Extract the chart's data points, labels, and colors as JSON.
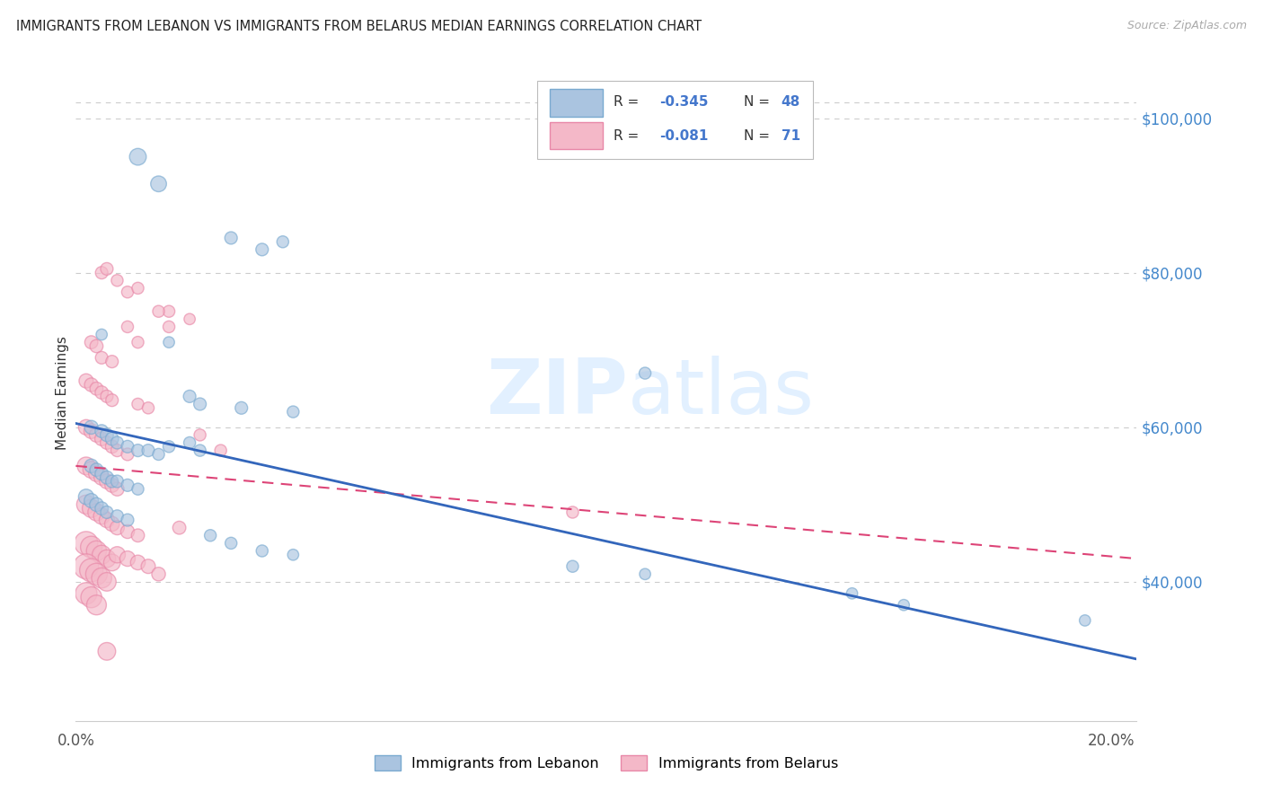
{
  "title": "IMMIGRANTS FROM LEBANON VS IMMIGRANTS FROM BELARUS MEDIAN EARNINGS CORRELATION CHART",
  "source_text": "Source: ZipAtlas.com",
  "ylabel": "Median Earnings",
  "xlim": [
    0.0,
    0.205
  ],
  "ylim": [
    22000,
    107000
  ],
  "yticks": [
    40000,
    60000,
    80000,
    100000
  ],
  "ytick_labels": [
    "$40,000",
    "$60,000",
    "$80,000",
    "$100,000"
  ],
  "xticks": [
    0.0,
    0.05,
    0.1,
    0.15,
    0.2
  ],
  "xtick_labels": [
    "0.0%",
    "",
    "",
    "",
    "20.0%"
  ],
  "watermark": "ZIPatlas",
  "lebanon_color": "#aac4e0",
  "lebanon_edge": "#7aaad0",
  "belarus_color": "#f4b8c8",
  "belarus_edge": "#e888a8",
  "line_lebanon_color": "#3366bb",
  "line_belarus_color": "#dd4477",
  "lebanon_line": [
    0.0,
    60500,
    0.205,
    30000
  ],
  "belarus_line": [
    0.0,
    55000,
    0.205,
    43000
  ],
  "background_color": "#ffffff",
  "grid_color": "#cccccc",
  "ytick_color": "#4488cc",
  "title_fontsize": 11,
  "source_fontsize": 9,
  "legend_R1": "R = -0.345",
  "legend_N1": "N = 48",
  "legend_R2": "R = -0.081",
  "legend_N2": "N = 71",
  "lebanon_points": [
    [
      0.012,
      95000,
      180
    ],
    [
      0.016,
      91500,
      160
    ],
    [
      0.03,
      84500,
      100
    ],
    [
      0.036,
      83000,
      100
    ],
    [
      0.04,
      84000,
      90
    ],
    [
      0.005,
      72000,
      80
    ],
    [
      0.018,
      71000,
      80
    ],
    [
      0.11,
      67000,
      90
    ],
    [
      0.022,
      64000,
      100
    ],
    [
      0.024,
      63000,
      100
    ],
    [
      0.032,
      62500,
      100
    ],
    [
      0.042,
      62000,
      90
    ],
    [
      0.003,
      60000,
      120
    ],
    [
      0.005,
      59500,
      110
    ],
    [
      0.006,
      59000,
      110
    ],
    [
      0.007,
      58500,
      110
    ],
    [
      0.008,
      58000,
      100
    ],
    [
      0.01,
      57500,
      100
    ],
    [
      0.012,
      57000,
      100
    ],
    [
      0.014,
      57000,
      100
    ],
    [
      0.016,
      56500,
      90
    ],
    [
      0.018,
      57500,
      90
    ],
    [
      0.022,
      58000,
      90
    ],
    [
      0.024,
      57000,
      90
    ],
    [
      0.003,
      55000,
      120
    ],
    [
      0.004,
      54500,
      110
    ],
    [
      0.005,
      54000,
      110
    ],
    [
      0.006,
      53500,
      110
    ],
    [
      0.007,
      53000,
      100
    ],
    [
      0.008,
      53000,
      100
    ],
    [
      0.01,
      52500,
      100
    ],
    [
      0.012,
      52000,
      90
    ],
    [
      0.002,
      51000,
      150
    ],
    [
      0.003,
      50500,
      130
    ],
    [
      0.004,
      50000,
      120
    ],
    [
      0.005,
      49500,
      110
    ],
    [
      0.006,
      49000,
      100
    ],
    [
      0.008,
      48500,
      100
    ],
    [
      0.01,
      48000,
      100
    ],
    [
      0.026,
      46000,
      90
    ],
    [
      0.03,
      45000,
      90
    ],
    [
      0.036,
      44000,
      90
    ],
    [
      0.042,
      43500,
      80
    ],
    [
      0.096,
      42000,
      90
    ],
    [
      0.11,
      41000,
      80
    ],
    [
      0.15,
      38500,
      80
    ],
    [
      0.16,
      37000,
      80
    ],
    [
      0.195,
      35000,
      80
    ]
  ],
  "belarus_points": [
    [
      0.005,
      80000,
      100
    ],
    [
      0.006,
      80500,
      100
    ],
    [
      0.008,
      79000,
      90
    ],
    [
      0.01,
      77500,
      90
    ],
    [
      0.012,
      78000,
      90
    ],
    [
      0.018,
      75000,
      90
    ],
    [
      0.022,
      74000,
      80
    ],
    [
      0.003,
      71000,
      110
    ],
    [
      0.004,
      70500,
      110
    ],
    [
      0.005,
      69000,
      100
    ],
    [
      0.007,
      68500,
      100
    ],
    [
      0.01,
      73000,
      90
    ],
    [
      0.012,
      71000,
      90
    ],
    [
      0.002,
      66000,
      130
    ],
    [
      0.003,
      65500,
      120
    ],
    [
      0.004,
      65000,
      110
    ],
    [
      0.005,
      64500,
      110
    ],
    [
      0.006,
      64000,
      100
    ],
    [
      0.007,
      63500,
      100
    ],
    [
      0.012,
      63000,
      90
    ],
    [
      0.014,
      62500,
      90
    ],
    [
      0.016,
      75000,
      90
    ],
    [
      0.018,
      73000,
      90
    ],
    [
      0.002,
      60000,
      150
    ],
    [
      0.003,
      59500,
      140
    ],
    [
      0.004,
      59000,
      130
    ],
    [
      0.005,
      58500,
      120
    ],
    [
      0.006,
      58000,
      110
    ],
    [
      0.007,
      57500,
      110
    ],
    [
      0.008,
      57000,
      100
    ],
    [
      0.01,
      56500,
      100
    ],
    [
      0.002,
      55000,
      200
    ],
    [
      0.003,
      54500,
      180
    ],
    [
      0.004,
      54000,
      160
    ],
    [
      0.005,
      53500,
      150
    ],
    [
      0.006,
      53000,
      140
    ],
    [
      0.007,
      52500,
      130
    ],
    [
      0.008,
      52000,
      120
    ],
    [
      0.002,
      50000,
      230
    ],
    [
      0.003,
      49500,
      210
    ],
    [
      0.004,
      49000,
      190
    ],
    [
      0.005,
      48500,
      170
    ],
    [
      0.006,
      48000,
      150
    ],
    [
      0.007,
      47500,
      140
    ],
    [
      0.008,
      47000,
      130
    ],
    [
      0.01,
      46500,
      120
    ],
    [
      0.012,
      46000,
      110
    ],
    [
      0.002,
      45000,
      350
    ],
    [
      0.003,
      44500,
      300
    ],
    [
      0.004,
      44000,
      260
    ],
    [
      0.005,
      43500,
      230
    ],
    [
      0.006,
      43000,
      200
    ],
    [
      0.007,
      42500,
      180
    ],
    [
      0.002,
      42000,
      400
    ],
    [
      0.003,
      41500,
      350
    ],
    [
      0.004,
      41000,
      300
    ],
    [
      0.005,
      40500,
      260
    ],
    [
      0.006,
      40000,
      220
    ],
    [
      0.008,
      43500,
      170
    ],
    [
      0.01,
      43000,
      150
    ],
    [
      0.012,
      42500,
      140
    ],
    [
      0.014,
      42000,
      130
    ],
    [
      0.016,
      41000,
      120
    ],
    [
      0.02,
      47000,
      110
    ],
    [
      0.024,
      59000,
      90
    ],
    [
      0.028,
      57000,
      90
    ],
    [
      0.096,
      49000,
      90
    ],
    [
      0.002,
      38500,
      300
    ],
    [
      0.003,
      38000,
      280
    ],
    [
      0.004,
      37000,
      250
    ],
    [
      0.006,
      31000,
      200
    ]
  ]
}
